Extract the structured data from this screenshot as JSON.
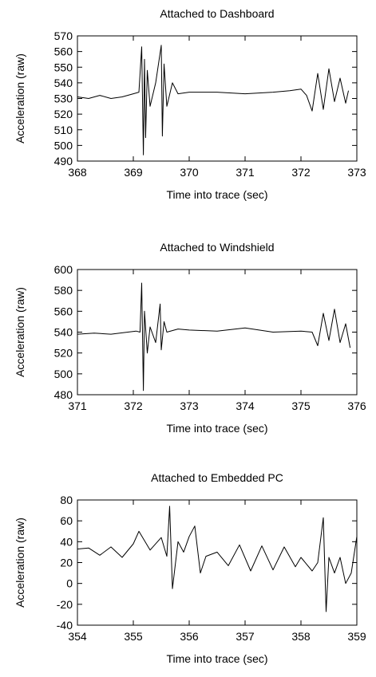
{
  "chart_data": [
    {
      "type": "line",
      "title": "Attached to Dashboard",
      "xlabel": "Time into trace (sec)",
      "ylabel": "Acceleration (raw)",
      "xlim": [
        368,
        373
      ],
      "ylim": [
        490,
        570
      ],
      "xticks": [
        368,
        369,
        370,
        371,
        372,
        373
      ],
      "yticks": [
        490,
        500,
        510,
        520,
        530,
        540,
        550,
        560,
        570
      ],
      "grid": false,
      "series": [
        {
          "x": [
            368.0,
            368.2,
            368.4,
            368.6,
            368.8,
            369.0,
            369.1,
            369.15,
            369.18,
            369.2,
            369.22,
            369.25,
            369.3,
            369.4,
            369.5,
            369.52,
            369.55,
            369.6,
            369.7,
            369.8,
            370.0,
            370.5,
            371.0,
            371.5,
            371.8,
            372.0,
            372.1,
            372.2,
            372.3,
            372.4,
            372.5,
            372.6,
            372.7,
            372.8,
            372.85
          ],
          "y": [
            531,
            530,
            532,
            530,
            531,
            533,
            534,
            563,
            494,
            555,
            505,
            548,
            525,
            540,
            564,
            506,
            552,
            525,
            540,
            533,
            534,
            534,
            533,
            534,
            535,
            536,
            532,
            522,
            546,
            523,
            549,
            528,
            543,
            527,
            535
          ]
        }
      ]
    },
    {
      "type": "line",
      "title": "Attached to Windshield",
      "xlabel": "Time into trace (sec)",
      "ylabel": "Acceleration (raw)",
      "xlim": [
        371,
        376
      ],
      "ylim": [
        480,
        600
      ],
      "xticks": [
        371,
        372,
        373,
        374,
        375,
        376
      ],
      "yticks": [
        480,
        500,
        520,
        540,
        560,
        580,
        600
      ],
      "grid": false,
      "series": [
        {
          "x": [
            371.0,
            371.3,
            371.6,
            371.9,
            372.05,
            372.12,
            372.15,
            372.18,
            372.2,
            372.25,
            372.3,
            372.4,
            372.48,
            372.5,
            372.55,
            372.6,
            372.8,
            373.0,
            373.5,
            374.0,
            374.5,
            375.0,
            375.2,
            375.3,
            375.4,
            375.5,
            375.6,
            375.7,
            375.8,
            375.88
          ],
          "y": [
            538,
            539,
            538,
            540,
            541,
            540,
            587,
            484,
            560,
            520,
            545,
            530,
            567,
            523,
            550,
            540,
            543,
            542,
            541,
            544,
            540,
            541,
            540,
            527,
            558,
            532,
            562,
            530,
            548,
            525
          ]
        }
      ]
    },
    {
      "type": "line",
      "title": "Attached to Embedded PC",
      "xlabel": "Time into trace (sec)",
      "ylabel": "Acceleration (raw)",
      "xlim": [
        354,
        359
      ],
      "ylim": [
        -40,
        80
      ],
      "xticks": [
        354,
        355,
        356,
        357,
        358,
        359
      ],
      "yticks": [
        -40,
        -20,
        0,
        20,
        40,
        60,
        80
      ],
      "grid": false,
      "series": [
        {
          "x": [
            354.0,
            354.2,
            354.4,
            354.6,
            354.8,
            355.0,
            355.1,
            355.3,
            355.5,
            355.6,
            355.65,
            355.7,
            355.8,
            355.9,
            356.0,
            356.1,
            356.2,
            356.3,
            356.5,
            356.7,
            356.9,
            357.1,
            357.3,
            357.5,
            357.7,
            357.9,
            358.0,
            358.2,
            358.3,
            358.4,
            358.45,
            358.5,
            358.6,
            358.7,
            358.8,
            358.9,
            359.0
          ],
          "y": [
            33,
            34,
            27,
            35,
            25,
            38,
            50,
            32,
            44,
            26,
            74,
            -5,
            40,
            30,
            45,
            55,
            10,
            26,
            30,
            17,
            37,
            12,
            36,
            13,
            35,
            16,
            25,
            12,
            20,
            63,
            -27,
            25,
            10,
            25,
            0,
            10,
            45
          ]
        }
      ]
    }
  ]
}
